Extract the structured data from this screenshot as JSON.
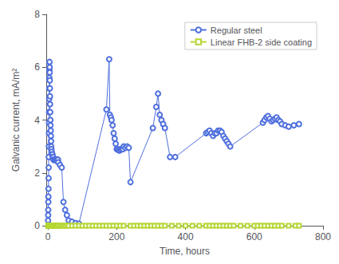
{
  "chart_data": {
    "type": "line",
    "xlabel": "Time, hours",
    "ylabel": "Galvanic current, mA/m²",
    "xlim": [
      -5,
      800
    ],
    "ylim": [
      0,
      8
    ],
    "xticks": [
      0,
      200,
      400,
      600,
      800
    ],
    "yticks": [
      0,
      2,
      4,
      6,
      8
    ],
    "grid": false,
    "legend": "upper right",
    "series": [
      {
        "name": "Regular steel",
        "marker": "circle",
        "x": [
          0.2,
          0.5,
          0.8,
          1,
          1.2,
          1.5,
          1.8,
          2,
          2.2,
          2.5,
          2.8,
          3,
          3.2,
          3.5,
          3.8,
          4,
          4.2,
          4.5,
          4.8,
          5,
          5.2,
          5.5,
          5.8,
          6,
          6.5,
          7,
          7.5,
          8,
          8.5,
          9,
          9.5,
          10,
          11,
          12,
          13,
          14,
          15,
          16,
          17,
          18,
          19,
          20,
          21,
          22,
          23,
          24,
          25,
          26,
          27,
          28,
          29,
          30,
          35,
          40,
          45,
          50,
          55,
          60,
          70,
          80,
          90,
          170,
          178,
          180,
          183,
          185,
          188,
          191,
          194,
          197,
          200,
          203,
          206,
          209,
          212,
          215,
          218,
          220,
          225,
          230,
          235,
          240,
          305,
          315,
          320,
          325,
          330,
          335,
          340,
          355,
          370,
          460,
          465,
          470,
          475,
          480,
          485,
          490,
          495,
          500,
          505,
          510,
          515,
          520,
          525,
          530,
          625,
          630,
          635,
          640,
          645,
          650,
          655,
          660,
          665,
          670,
          675,
          680,
          690,
          700,
          715,
          730
        ],
        "values": [
          0.2,
          0.4,
          0.6,
          0.9,
          1.1,
          1.4,
          1.8,
          2.2,
          2.6,
          3.0,
          3.5,
          3.9,
          4.3,
          4.8,
          5.2,
          5.6,
          5.9,
          6.2,
          6.0,
          5.8,
          5.5,
          5.2,
          4.9,
          4.6,
          4.3,
          4.0,
          3.8,
          3.6,
          3.4,
          3.2,
          3.0,
          2.9,
          2.8,
          2.7,
          2.7,
          2.6,
          2.6,
          2.5,
          2.5,
          2.5,
          2.5,
          2.5,
          2.5,
          2.5,
          2.5,
          2.5,
          2.5,
          2.5,
          2.5,
          2.5,
          2.5,
          2.4,
          2.3,
          2.2,
          0.9,
          0.6,
          0.4,
          0.2,
          0.15,
          0.1,
          0.08,
          4.4,
          6.3,
          4.2,
          4.1,
          4.0,
          3.8,
          3.5,
          3.3,
          3.1,
          2.9,
          2.9,
          2.85,
          2.85,
          2.9,
          2.9,
          2.9,
          3.0,
          2.95,
          3.0,
          2.95,
          1.65,
          3.7,
          4.5,
          5.0,
          4.2,
          4.0,
          3.85,
          3.7,
          2.6,
          2.6,
          3.5,
          3.55,
          3.6,
          3.5,
          3.4,
          3.5,
          3.5,
          3.6,
          3.6,
          3.55,
          3.4,
          3.3,
          3.2,
          3.1,
          3.0,
          3.9,
          4.0,
          4.1,
          4.15,
          4.05,
          3.95,
          4.0,
          4.05,
          4.1,
          4.0,
          3.95,
          3.85,
          3.8,
          3.75,
          3.8,
          3.85
        ]
      },
      {
        "name": "Linear FHB-2 side coating",
        "marker": "square",
        "x": [
          0,
          1,
          2,
          3,
          4,
          5,
          6,
          7,
          8,
          9,
          10,
          11,
          12,
          13,
          14,
          15,
          16,
          17,
          18,
          19,
          20,
          22,
          24,
          26,
          28,
          30,
          35,
          40,
          45,
          50,
          55,
          60,
          70,
          80,
          90,
          100,
          110,
          120,
          130,
          140,
          150,
          160,
          170,
          180,
          190,
          200,
          210,
          220,
          240,
          250,
          260,
          270,
          280,
          290,
          300,
          310,
          320,
          330,
          340,
          360,
          380,
          400,
          420,
          440,
          460,
          470,
          480,
          490,
          500,
          510,
          520,
          530,
          540,
          560,
          580,
          600,
          610,
          620,
          630,
          640,
          650,
          660,
          670,
          680,
          700,
          720,
          730
        ],
        "values": [
          0,
          0,
          0,
          0,
          0,
          0,
          0,
          0,
          0,
          0,
          0,
          0,
          0,
          0,
          0,
          0,
          0,
          0,
          0,
          0,
          0,
          0,
          0,
          0,
          0,
          0,
          0,
          0,
          0,
          0,
          0,
          0,
          0,
          0,
          0,
          0,
          0,
          0,
          0,
          0,
          0,
          0,
          0,
          0,
          0,
          0,
          0,
          0,
          0,
          0,
          0,
          0,
          0,
          0,
          0,
          0,
          0,
          0,
          0,
          0,
          0,
          0,
          0,
          0,
          0,
          0,
          0,
          0,
          0,
          0,
          0,
          0,
          0,
          0,
          0,
          0,
          0,
          0,
          0,
          0,
          0,
          0,
          0,
          0,
          0,
          0,
          0
        ]
      }
    ]
  }
}
